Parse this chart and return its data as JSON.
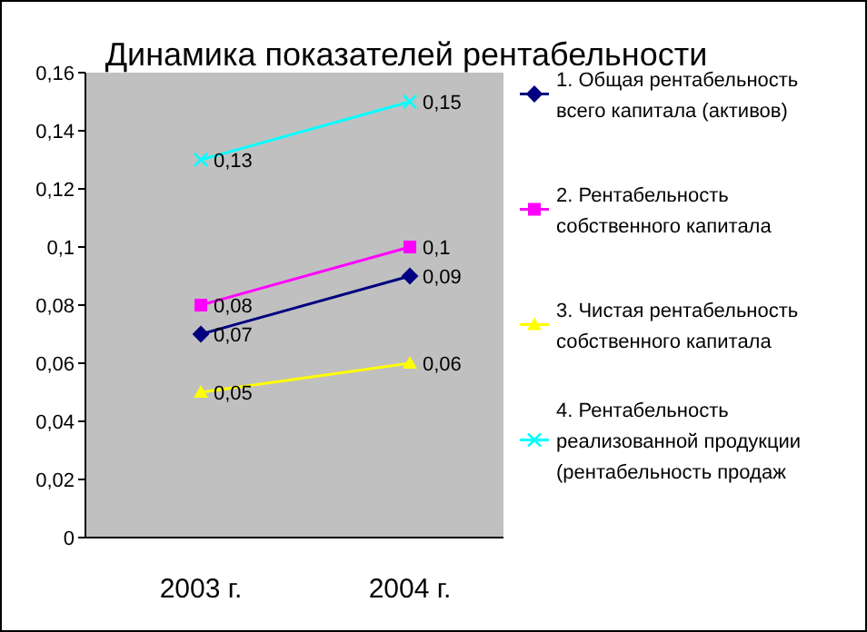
{
  "chart_data": {
    "type": "line",
    "title": "Динамика показателей рентабельности",
    "categories": [
      "2003 г.",
      "2004 г."
    ],
    "ylim": [
      0,
      0.16
    ],
    "yticks": [
      0,
      {
        "value": 0.02,
        "label": "0,02"
      },
      {
        "value": 0.04,
        "label": "0,04"
      },
      {
        "value": 0.06,
        "label": "0,06"
      },
      {
        "value": 0.08,
        "label": "0,08"
      },
      {
        "value": 0.1,
        "label": "0,1"
      },
      {
        "value": 0.12,
        "label": "0,12"
      },
      {
        "value": 0.14,
        "label": "0,14"
      },
      {
        "value": 0.16,
        "label": "0,16"
      }
    ],
    "grid": false,
    "legend": "right",
    "series": [
      {
        "name": "1. Общая рентабельность всего капитала (активов)",
        "color": "#000080",
        "marker": "diamond",
        "values": [
          0.07,
          0.09
        ],
        "value_labels": [
          "0,07",
          "0,09"
        ]
      },
      {
        "name": "2. Рентабельность собственного капитала",
        "color": "#ff00ff",
        "marker": "square",
        "values": [
          0.08,
          0.1
        ],
        "value_labels": [
          "0,08",
          "0,1"
        ]
      },
      {
        "name": "3. Чистая рентабельность собственного капитала",
        "color": "#ffff00",
        "marker": "triangle",
        "values": [
          0.05,
          0.06
        ],
        "value_labels": [
          "0,05",
          "0,06"
        ]
      },
      {
        "name": "4. Рентабельность реализованной продукции (рентабельность продаж",
        "color": "#00ffff",
        "marker": "cross",
        "values": [
          0.13,
          0.15
        ],
        "value_labels": [
          "0,13",
          "0,15"
        ]
      }
    ]
  }
}
